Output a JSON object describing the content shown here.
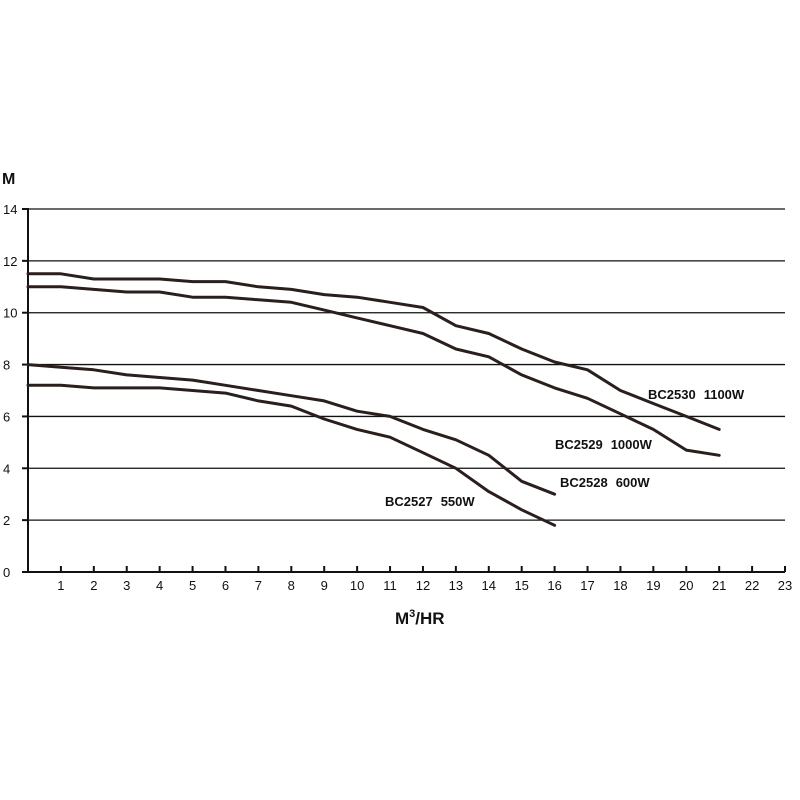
{
  "chart_data": {
    "type": "line",
    "ylabel": "M",
    "xlabel": "M³/HR",
    "xlabel_base": "M",
    "xlabel_sup": "3",
    "xlabel_rest": "/HR",
    "xlim": [
      0,
      23
    ],
    "ylim": [
      0,
      14
    ],
    "x_ticks": [
      1,
      2,
      3,
      4,
      5,
      6,
      7,
      8,
      9,
      10,
      11,
      12,
      13,
      14,
      15,
      16,
      17,
      18,
      19,
      20,
      21,
      22,
      23
    ],
    "y_ticks": [
      0,
      2,
      4,
      6,
      8,
      10,
      12,
      14
    ],
    "grid": "horizontal",
    "series": [
      {
        "name": "BC2530 1100W",
        "model": "BC2530",
        "power": "1100W",
        "x": [
          0,
          1,
          2,
          3,
          4,
          5,
          6,
          7,
          8,
          9,
          10,
          11,
          12,
          13,
          14,
          15,
          16,
          17,
          18,
          19,
          20,
          21
        ],
        "y": [
          11.5,
          11.5,
          11.3,
          11.3,
          11.3,
          11.2,
          11.2,
          11.0,
          10.9,
          10.7,
          10.6,
          10.4,
          10.2,
          9.5,
          9.2,
          8.6,
          8.1,
          7.8,
          7.0,
          6.5,
          6.0,
          5.5
        ]
      },
      {
        "name": "BC2529 1000W",
        "model": "BC2529",
        "power": "1000W",
        "x": [
          0,
          1,
          2,
          3,
          4,
          5,
          6,
          7,
          8,
          9,
          10,
          11,
          12,
          13,
          14,
          15,
          16,
          17,
          18,
          19,
          20,
          21
        ],
        "y": [
          11.0,
          11.0,
          10.9,
          10.8,
          10.8,
          10.6,
          10.6,
          10.5,
          10.4,
          10.1,
          9.8,
          9.5,
          9.2,
          8.6,
          8.3,
          7.6,
          7.1,
          6.7,
          6.1,
          5.5,
          4.7,
          4.5
        ]
      },
      {
        "name": "BC2528 600W",
        "model": "BC2528",
        "power": "600W",
        "x": [
          0,
          1,
          2,
          3,
          4,
          5,
          6,
          7,
          8,
          9,
          10,
          11,
          12,
          13,
          14,
          15,
          16
        ],
        "y": [
          8.0,
          7.9,
          7.8,
          7.6,
          7.5,
          7.4,
          7.2,
          7.0,
          6.8,
          6.6,
          6.2,
          6.0,
          5.5,
          5.1,
          4.5,
          3.5,
          3.0
        ]
      },
      {
        "name": "BC2527 550W",
        "model": "BC2527",
        "power": "550W",
        "x": [
          0,
          1,
          2,
          3,
          4,
          5,
          6,
          7,
          8,
          9,
          10,
          11,
          12,
          13,
          14,
          15,
          16
        ],
        "y": [
          7.2,
          7.2,
          7.1,
          7.1,
          7.1,
          7.0,
          6.9,
          6.6,
          6.4,
          5.9,
          5.5,
          5.2,
          4.6,
          4.0,
          3.1,
          2.4,
          1.8
        ]
      }
    ]
  }
}
